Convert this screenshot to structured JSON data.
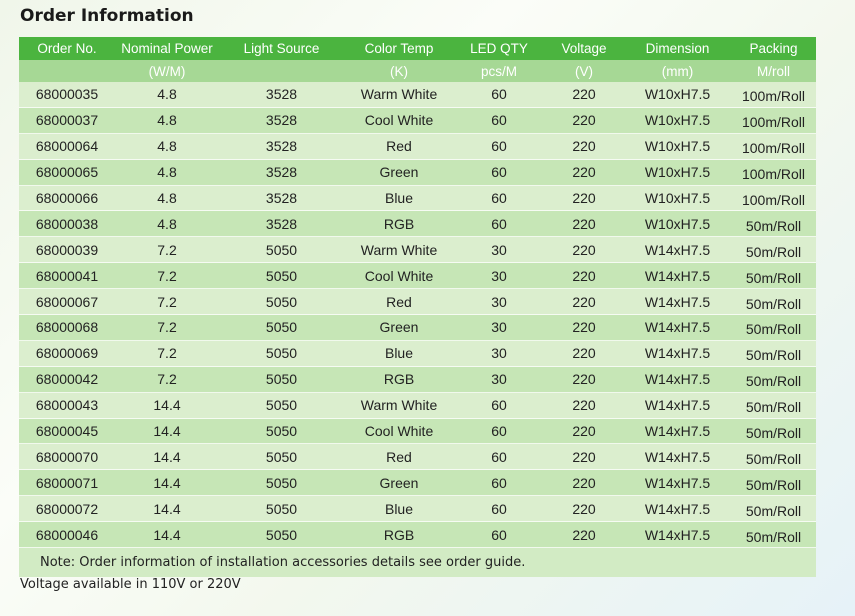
{
  "title": "Order Information",
  "table": {
    "headers": [
      "Order No.",
      "Nominal Power",
      "Light Source",
      "Color Temp",
      "LED QTY",
      "Voltage",
      "Dimension",
      "Packing"
    ],
    "units": [
      "",
      "(W/M)",
      "",
      "(K)",
      "pcs/M",
      "(V)",
      "(mm)",
      "M/roll"
    ],
    "rows": [
      [
        "68000035",
        "4.8",
        "3528",
        "Warm White",
        "60",
        "220",
        "W10xH7.5",
        "100m/Roll"
      ],
      [
        "68000037",
        "4.8",
        "3528",
        "Cool White",
        "60",
        "220",
        "W10xH7.5",
        "100m/Roll"
      ],
      [
        "68000064",
        "4.8",
        "3528",
        "Red",
        "60",
        "220",
        "W10xH7.5",
        "100m/Roll"
      ],
      [
        "68000065",
        "4.8",
        "3528",
        "Green",
        "60",
        "220",
        "W10xH7.5",
        "100m/Roll"
      ],
      [
        "68000066",
        "4.8",
        "3528",
        "Blue",
        "60",
        "220",
        "W10xH7.5",
        "100m/Roll"
      ],
      [
        "68000038",
        "4.8",
        "3528",
        "RGB",
        "60",
        "220",
        "W10xH7.5",
        "50m/Roll"
      ],
      [
        "68000039",
        "7.2",
        "5050",
        "Warm White",
        "30",
        "220",
        "W14xH7.5",
        "50m/Roll"
      ],
      [
        "68000041",
        "7.2",
        "5050",
        "Cool White",
        "30",
        "220",
        "W14xH7.5",
        "50m/Roll"
      ],
      [
        "68000067",
        "7.2",
        "5050",
        "Red",
        "30",
        "220",
        "W14xH7.5",
        "50m/Roll"
      ],
      [
        "68000068",
        "7.2",
        "5050",
        "Green",
        "30",
        "220",
        "W14xH7.5",
        "50m/Roll"
      ],
      [
        "68000069",
        "7.2",
        "5050",
        "Blue",
        "30",
        "220",
        "W14xH7.5",
        "50m/Roll"
      ],
      [
        "68000042",
        "7.2",
        "5050",
        "RGB",
        "30",
        "220",
        "W14xH7.5",
        "50m/Roll"
      ],
      [
        "68000043",
        "14.4",
        "5050",
        "Warm White",
        "60",
        "220",
        "W14xH7.5",
        "50m/Roll"
      ],
      [
        "68000045",
        "14.4",
        "5050",
        "Cool White",
        "60",
        "220",
        "W14xH7.5",
        "50m/Roll"
      ],
      [
        "68000070",
        "14.4",
        "5050",
        "Red",
        "60",
        "220",
        "W14xH7.5",
        "50m/Roll"
      ],
      [
        "68000071",
        "14.4",
        "5050",
        "Green",
        "60",
        "220",
        "W14xH7.5",
        "50m/Roll"
      ],
      [
        "68000072",
        "14.4",
        "5050",
        "Blue",
        "60",
        "220",
        "W14xH7.5",
        "50m/Roll"
      ],
      [
        "68000046",
        "14.4",
        "5050",
        "RGB",
        "60",
        "220",
        "W14xH7.5",
        "50m/Roll"
      ]
    ]
  },
  "note": "Note: Order information of installation accessories details see order guide.",
  "footer": "Voltage available in 110V or 220V",
  "colors": {
    "header_bg": "#4bb43f",
    "subheader_bg": "#a6d895",
    "row_odd": "#dbeece",
    "row_even": "#c6e6b6"
  }
}
